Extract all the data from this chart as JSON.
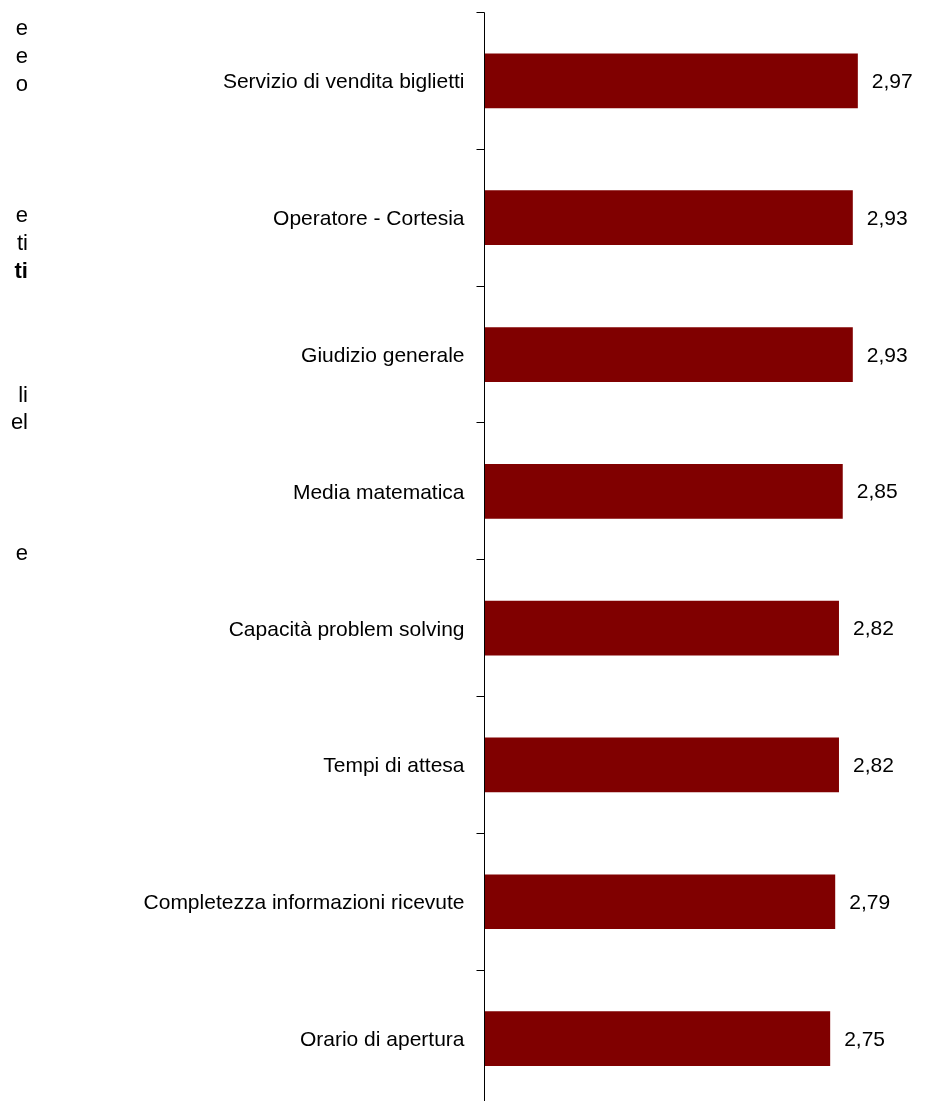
{
  "chart_data": {
    "type": "bar",
    "orientation": "horizontal",
    "categories": [
      "Servizio di vendita biglietti",
      "Operatore - Cortesia",
      "Giudizio generale",
      "Media matematica",
      "Capacità problem solving",
      "Tempi di attesa",
      "Completezza informazioni ricevute",
      "Orario di apertura"
    ],
    "values": [
      2.97,
      2.93,
      2.93,
      2.85,
      2.82,
      2.82,
      2.79,
      2.75
    ],
    "value_labels": [
      "2,97",
      "2,93",
      "2,93",
      "2,85",
      "2,82",
      "2,82",
      "2,79",
      "2,75"
    ],
    "color": "#800000",
    "tick_labels": "y",
    "grid": false,
    "annotations": [
      "e",
      "e",
      "o",
      "e",
      "ti",
      "ti",
      "li",
      "el",
      "e"
    ]
  }
}
